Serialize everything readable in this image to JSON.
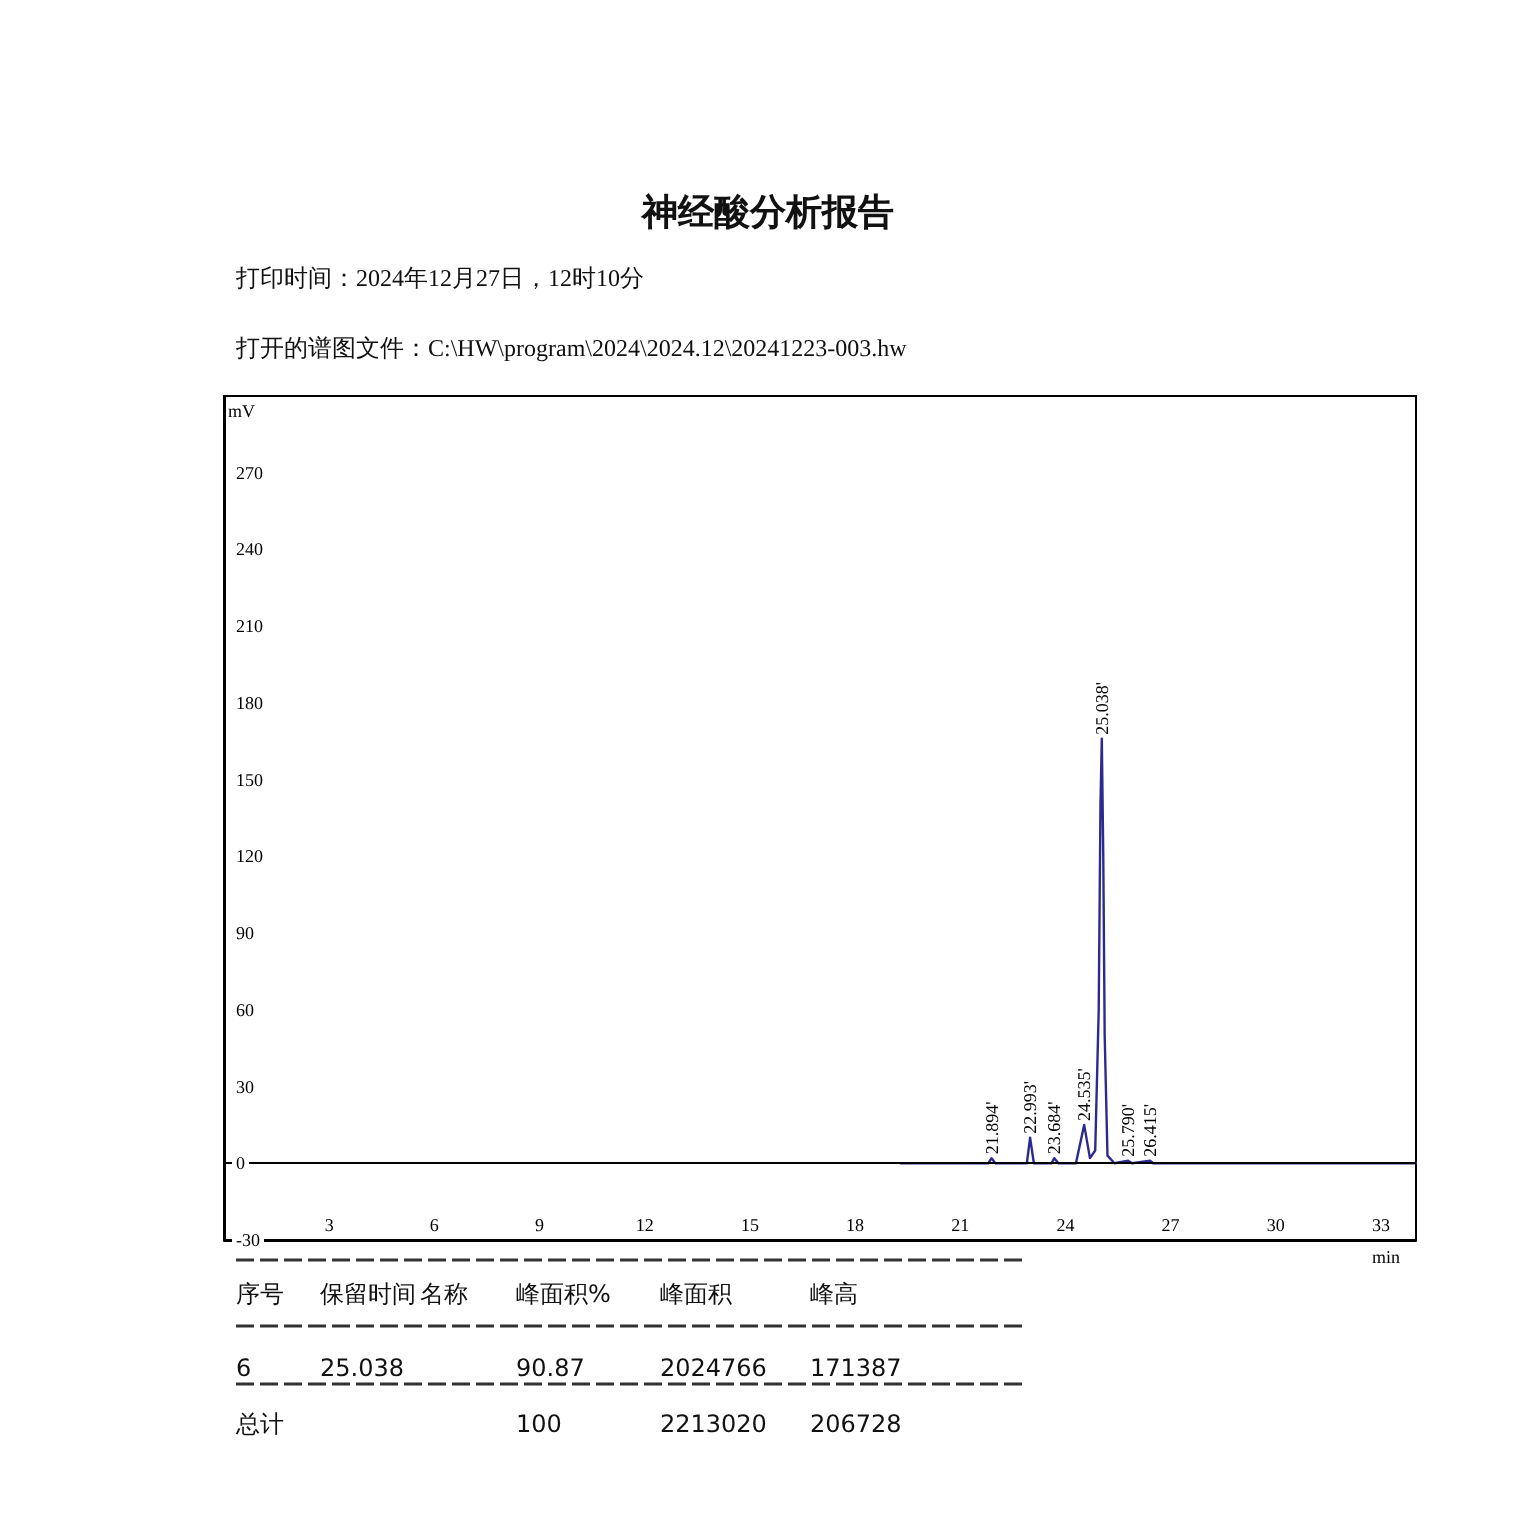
{
  "chart_data": {
    "type": "line",
    "title": "神经酸分析报告",
    "subtitle": "打印时间：2024年12月27日，12时10分",
    "xlabel": "min",
    "ylabel": "mV",
    "x": [
      19.3,
      21.8,
      21.894,
      22.0,
      22.9,
      22.993,
      23.1,
      23.6,
      23.684,
      23.8,
      24.3,
      24.535,
      24.7,
      24.85,
      24.95,
      25.0,
      25.038,
      25.08,
      25.12,
      25.2,
      25.4,
      25.79,
      25.9,
      26.415,
      26.5,
      34
    ],
    "series": [
      {
        "color": "#2b2b8f",
        "values": [
          0,
          0,
          2,
          0,
          0,
          10,
          0,
          0,
          2,
          0,
          0,
          15,
          2,
          5,
          60,
          140,
          166,
          120,
          50,
          3,
          0,
          1,
          0,
          1,
          0,
          0
        ]
      }
    ],
    "xlim": [
      0,
      34
    ],
    "xticks": [
      3,
      6,
      9,
      12,
      15,
      18,
      21,
      24,
      27,
      30,
      33
    ],
    "ylim": [
      -30,
      300
    ],
    "yticks": [
      -30,
      0,
      30,
      60,
      90,
      120,
      150,
      180,
      210,
      240,
      270
    ],
    "grid": false,
    "marker": "none",
    "line_style": "solid",
    "ref_lines": [
      {
        "axis": "y",
        "value": 0,
        "color": "#000000"
      }
    ],
    "annotations": [
      {
        "text": "21.894'",
        "x": 21.894,
        "y": 2
      },
      {
        "text": "22.993'",
        "x": 22.993,
        "y": 10
      },
      {
        "text": "23.684'",
        "x": 23.684,
        "y": 2
      },
      {
        "text": "24.535'",
        "x": 24.535,
        "y": 15
      },
      {
        "text": "25.038'",
        "x": 25.038,
        "y": 166
      },
      {
        "text": "25.790'",
        "x": 25.79,
        "y": 1
      },
      {
        "text": "26.415'",
        "x": 26.415,
        "y": 1
      },
      "打开的谱图文件：C:\\HW\\program\\2024\\2024.12\\20241223-003.hw",
      "序号",
      "保留时间",
      "名称",
      "峰面积%",
      "峰面积",
      "峰高",
      "6",
      "25.038",
      "90.87",
      "2024766",
      "171387",
      "总计",
      "100",
      "2213020",
      "206728"
    ]
  }
}
